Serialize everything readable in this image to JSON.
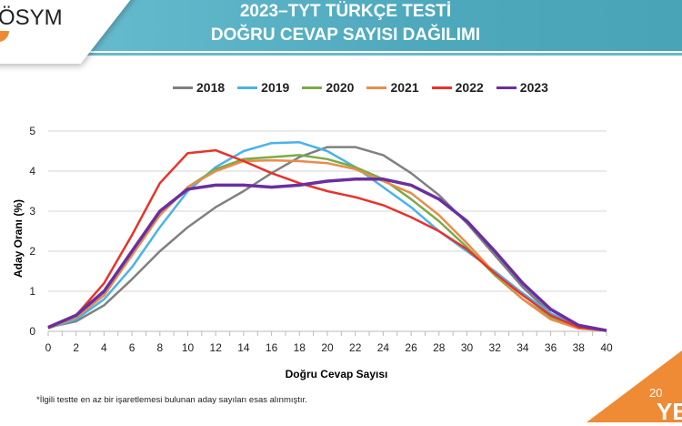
{
  "header": {
    "logo": "ÖSYM",
    "title_line1": "2023–TYT TÜRKÇE TESTİ",
    "title_line2": "DOĞRU CEVAP SAYISI DAĞILIMI"
  },
  "corner": {
    "line1": "20",
    "line2": "YE"
  },
  "footnote": "*İlgili testte en az bir işaretlemesi bulunan aday sayıları esas alınmıştır.",
  "chart_data": {
    "type": "line",
    "xlabel": "Doğru Cevap Sayısı",
    "ylabel": "Aday Oranı (%)",
    "xlim": [
      0,
      40
    ],
    "ylim": [
      0,
      5
    ],
    "xticks": [
      0,
      2,
      4,
      6,
      8,
      10,
      12,
      14,
      16,
      18,
      20,
      22,
      24,
      26,
      28,
      30,
      32,
      34,
      36,
      38,
      40
    ],
    "yticks": [
      0,
      1,
      2,
      3,
      4,
      5
    ],
    "grid": "horizontal",
    "legend": "top",
    "x": [
      0,
      2,
      4,
      6,
      8,
      10,
      12,
      14,
      16,
      18,
      20,
      22,
      24,
      26,
      28,
      30,
      32,
      34,
      36,
      38,
      40
    ],
    "series": [
      {
        "name": "2018",
        "color": "#808080",
        "values": [
          0.1,
          0.25,
          0.65,
          1.3,
          2.0,
          2.6,
          3.1,
          3.5,
          3.95,
          4.35,
          4.6,
          4.6,
          4.4,
          3.95,
          3.4,
          2.7,
          1.9,
          1.1,
          0.45,
          0.1,
          0.02
        ]
      },
      {
        "name": "2019",
        "color": "#4ab3ea",
        "values": [
          0.08,
          0.3,
          0.8,
          1.6,
          2.6,
          3.5,
          4.1,
          4.5,
          4.7,
          4.72,
          4.5,
          4.1,
          3.6,
          3.1,
          2.5,
          2.0,
          1.5,
          0.95,
          0.45,
          0.12,
          0.02
        ]
      },
      {
        "name": "2020",
        "color": "#7aab48",
        "values": [
          0.08,
          0.35,
          0.9,
          1.9,
          2.9,
          3.6,
          4.05,
          4.3,
          4.35,
          4.4,
          4.3,
          4.1,
          3.8,
          3.3,
          2.75,
          2.1,
          1.4,
          0.8,
          0.35,
          0.08,
          0.02
        ]
      },
      {
        "name": "2021",
        "color": "#e88d4a",
        "values": [
          0.08,
          0.35,
          0.9,
          1.9,
          2.9,
          3.6,
          4.0,
          4.25,
          4.27,
          4.25,
          4.2,
          4.05,
          3.75,
          3.45,
          2.9,
          2.2,
          1.45,
          0.8,
          0.3,
          0.07,
          0.02
        ]
      },
      {
        "name": "2022",
        "color": "#e8332a",
        "values": [
          0.08,
          0.4,
          1.2,
          2.4,
          3.7,
          4.45,
          4.52,
          4.25,
          3.95,
          3.7,
          3.5,
          3.35,
          3.15,
          2.85,
          2.5,
          2.05,
          1.45,
          0.9,
          0.4,
          0.1,
          0.02
        ]
      },
      {
        "name": "2023",
        "color": "#6a2fa0",
        "values": [
          0.1,
          0.4,
          1.0,
          2.0,
          3.0,
          3.55,
          3.65,
          3.65,
          3.6,
          3.65,
          3.75,
          3.8,
          3.8,
          3.65,
          3.3,
          2.75,
          2.0,
          1.2,
          0.55,
          0.15,
          0.02
        ]
      }
    ]
  }
}
